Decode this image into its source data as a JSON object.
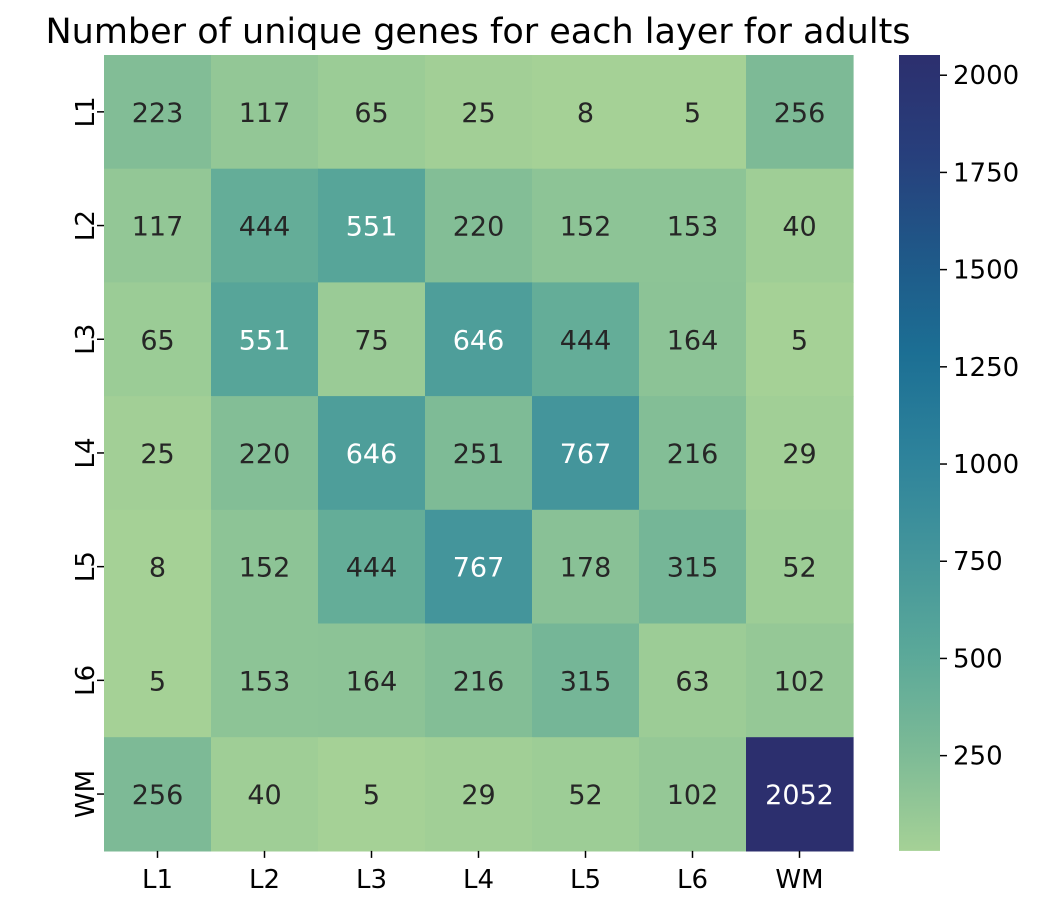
{
  "chart_data": {
    "type": "heatmap",
    "title": "Number of unique genes for each layer for adults",
    "x_labels": [
      "L1",
      "L2",
      "L3",
      "L4",
      "L5",
      "L6",
      "WM"
    ],
    "y_labels": [
      "L1",
      "L2",
      "L3",
      "L4",
      "L5",
      "L6",
      "WM"
    ],
    "values": [
      [
        223,
        117,
        65,
        25,
        8,
        5,
        256
      ],
      [
        117,
        444,
        551,
        220,
        152,
        153,
        40
      ],
      [
        65,
        551,
        75,
        646,
        444,
        164,
        5
      ],
      [
        25,
        220,
        646,
        251,
        767,
        216,
        29
      ],
      [
        8,
        152,
        444,
        767,
        178,
        315,
        52
      ],
      [
        5,
        153,
        164,
        216,
        315,
        63,
        102
      ],
      [
        256,
        40,
        5,
        29,
        52,
        102,
        2052
      ]
    ],
    "colorbar": {
      "ticks": [
        250,
        500,
        750,
        1000,
        1250,
        1500,
        1750,
        2000
      ],
      "vmin": 5,
      "vmax": 2052,
      "colormap": "crest",
      "stops": [
        "#a5d196",
        "#7cba96",
        "#5aa899",
        "#43959b",
        "#2d829b",
        "#1c6f94",
        "#1f5888",
        "#273f7c",
        "#2c2f6e"
      ]
    },
    "annotations": "cell values",
    "grid": false
  }
}
